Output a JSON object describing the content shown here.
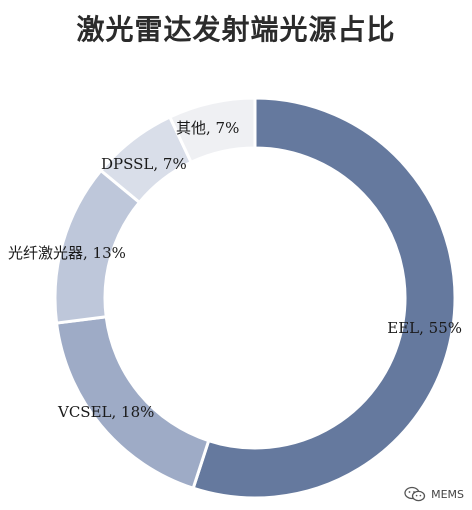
{
  "chart_data": {
    "type": "pie",
    "title": "激光雷达发射端光源占比",
    "slices": [
      {
        "name": "EEL",
        "value": 55,
        "label": "EEL, 55%",
        "color": "#65799e"
      },
      {
        "name": "VCSEL",
        "value": 18,
        "label": "VCSEL, 18%",
        "color": "#9eabc6"
      },
      {
        "name": "光纤激光器",
        "value": 13,
        "label": "光纤激光器, 13%",
        "color": "#bec7da"
      },
      {
        "name": "DPSSL",
        "value": 7,
        "label": "DPSSL, 7%",
        "color": "#d9dee9"
      },
      {
        "name": "其他",
        "value": 7,
        "label": "其他, 7%",
        "color": "#eff0f3"
      }
    ],
    "donut": true,
    "legend": "none"
  },
  "watermark": {
    "icon": "wechat-icon",
    "text": "MEMS"
  }
}
